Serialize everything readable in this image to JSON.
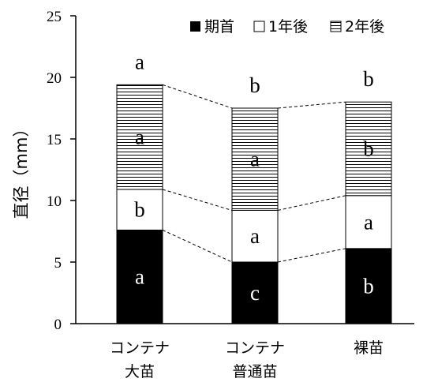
{
  "chart_data": {
    "type": "bar",
    "stacked": true,
    "categories": [
      {
        "lines": [
          "コンテナ",
          "大苗"
        ]
      },
      {
        "lines": [
          "コンテナ",
          "普通苗"
        ]
      },
      {
        "lines": [
          "裸苗"
        ]
      }
    ],
    "series": [
      {
        "name": "期首",
        "values": [
          7.6,
          5.0,
          6.1
        ],
        "pattern": "solid-black",
        "letters": [
          "a",
          "c",
          "b"
        ]
      },
      {
        "name": "1年後",
        "values": [
          3.3,
          4.2,
          4.3
        ],
        "pattern": "white",
        "letters": [
          "b",
          "a",
          "a"
        ]
      },
      {
        "name": "2年後",
        "values": [
          8.5,
          8.3,
          7.6
        ],
        "pattern": "horizontal-stripes",
        "letters": [
          "a",
          "a",
          "b"
        ]
      }
    ],
    "top_letters": [
      "a",
      "b",
      "b"
    ],
    "ylabel": "直径（mm）",
    "ylim": [
      0,
      25
    ],
    "yticks": [
      "0",
      "5",
      "10",
      "15",
      "20",
      "25"
    ],
    "legend_position": "top-right",
    "connector_lines": "dashed"
  }
}
